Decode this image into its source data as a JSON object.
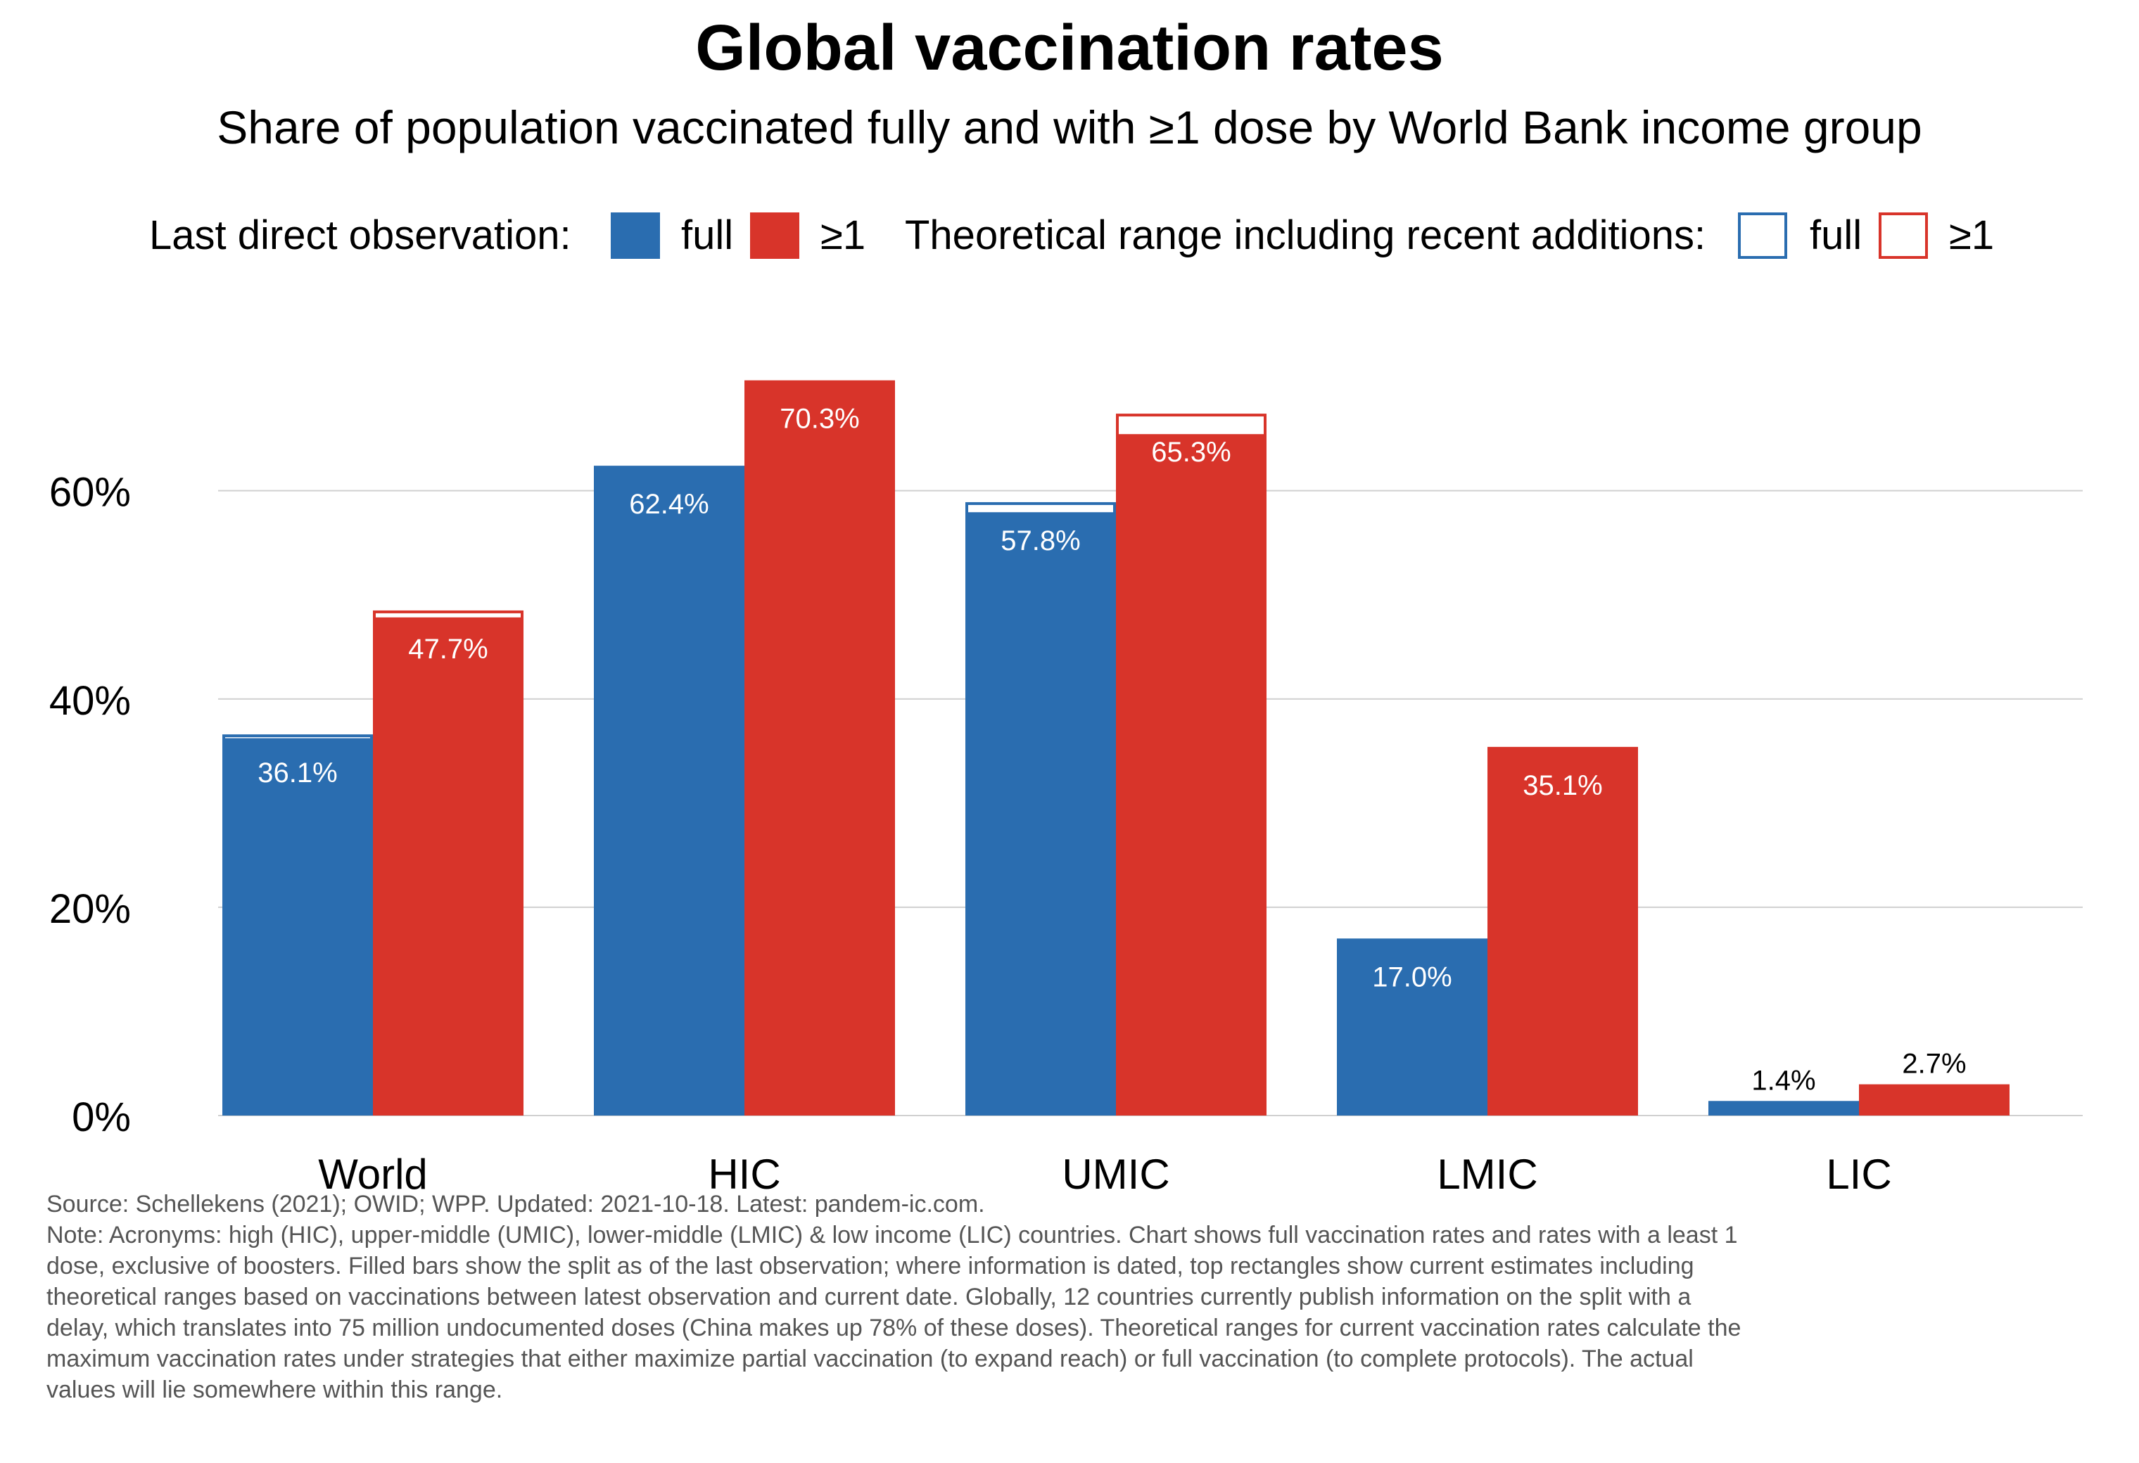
{
  "title": "Global vaccination rates",
  "subtitle": "Share of population vaccinated fully and with ≥1 dose by World Bank income group",
  "legend": {
    "group1_label": "Last direct observation:",
    "group1_full": "full",
    "group1_one": "≥1",
    "group2_label": "Theoretical range including recent additions:",
    "group2_full": "full",
    "group2_one": "≥1"
  },
  "colors": {
    "full": "#2a6db0",
    "one_dose": "#d8342a",
    "grid": "#d0d0d0",
    "bar_label_inside": "#ffffff",
    "bar_label_outside": "#000000"
  },
  "chart_data": {
    "type": "bar",
    "categories": [
      "World",
      "HIC",
      "UMIC",
      "LMIC",
      "LIC"
    ],
    "series": [
      {
        "key": "full",
        "observed": [
          36.1,
          62.4,
          57.8,
          17.0,
          1.4
        ],
        "range_top": [
          36.6,
          62.4,
          58.9,
          17.0,
          1.4
        ],
        "labels": [
          "36.1%",
          "62.4%",
          "57.8%",
          "17.0%",
          "1.4%"
        ]
      },
      {
        "key": "one",
        "observed": [
          47.7,
          70.3,
          65.3,
          35.1,
          2.7
        ],
        "range_top": [
          48.5,
          70.6,
          67.4,
          35.4,
          3.0
        ],
        "labels": [
          "47.7%",
          "70.3%",
          "65.3%",
          "35.1%",
          "2.7%"
        ]
      }
    ],
    "y_ticks": [
      0,
      20,
      40,
      60
    ],
    "y_tick_labels": [
      "0%",
      "20%",
      "40%",
      "60%"
    ],
    "ylim": [
      0,
      72
    ],
    "grid": "horizontal",
    "legend_position": "top"
  },
  "footnote": {
    "lines": [
      "Source: Schellekens (2021); OWID; WPP. Updated: 2021-10-18. Latest: pandem-ic.com.",
      "Note: Acronyms: high (HIC), upper-middle (UMIC), lower-middle (LMIC) & low income (LIC) countries. Chart shows full vaccination rates and rates with a least 1",
      "dose, exclusive of boosters. Filled bars show the split as of the last observation; where information is dated, top rectangles show current estimates including",
      "theoretical ranges based on vaccinations between latest observation and current date. Globally, 12 countries currently publish information on the split with a",
      "delay, which translates into 75 million undocumented doses (China makes up 78% of these doses). Theoretical ranges for current vaccination rates calculate the",
      "maximum vaccination rates under strategies that either maximize partial vaccination (to expand reach) or full vaccination (to complete protocols). The actual",
      "values will lie somewhere within this range."
    ]
  }
}
